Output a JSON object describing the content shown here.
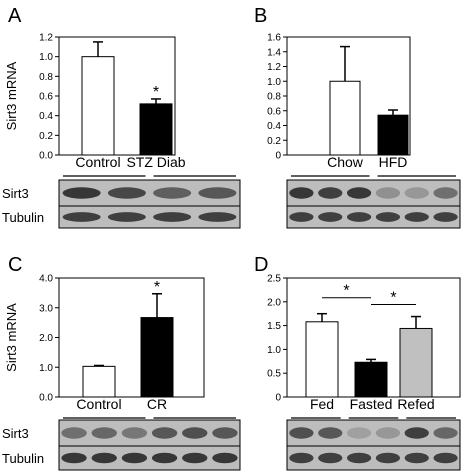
{
  "chart_data": [
    {
      "panel": "A",
      "type": "bar",
      "ylabel": "Sirt3 mRNA",
      "ylim": [
        0,
        1.2
      ],
      "yticks": [
        "0.0",
        "0.2",
        "0.4",
        "0.6",
        "0.8",
        "1.0",
        "1.2"
      ],
      "categories": [
        "Control",
        "STZ Diab"
      ],
      "values": [
        1.0,
        0.52
      ],
      "errors": [
        0.15,
        0.05
      ],
      "fills": [
        "#ffffff",
        "#000000"
      ],
      "significance": [
        "",
        "*"
      ],
      "blot_labels": [
        "Sirt3",
        "Tubulin"
      ],
      "group_sizes": [
        2,
        2
      ]
    },
    {
      "panel": "B",
      "type": "bar",
      "ylabel": "",
      "ylim": [
        0,
        1.6
      ],
      "yticks": [
        "0",
        "0.2",
        "0.4",
        "0.6",
        "0.8",
        "1.0",
        "1.2",
        "1.4",
        "1.6"
      ],
      "categories": [
        "Chow",
        "HFD"
      ],
      "values": [
        1.0,
        0.54
      ],
      "errors": [
        0.47,
        0.07
      ],
      "fills": [
        "#ffffff",
        "#000000"
      ],
      "significance": [
        "",
        ""
      ],
      "blot_labels": [],
      "group_sizes": [
        3,
        3
      ]
    },
    {
      "panel": "C",
      "type": "bar",
      "ylabel": "Sirt3 mRNA",
      "ylim": [
        0,
        4.0
      ],
      "yticks": [
        "0.0",
        "1.0",
        "2.0",
        "3.0",
        "4.0"
      ],
      "categories": [
        "Control",
        "CR"
      ],
      "values": [
        1.03,
        2.67
      ],
      "errors": [
        0.03,
        0.8
      ],
      "fills": [
        "#ffffff",
        "#000000"
      ],
      "significance": [
        "",
        "*"
      ],
      "blot_labels": [
        "Sirt3",
        "Tubulin"
      ],
      "group_sizes": [
        3,
        3
      ]
    },
    {
      "panel": "D",
      "type": "bar",
      "ylabel": "",
      "ylim": [
        0,
        2.5
      ],
      "yticks": [
        "0",
        "0.5",
        "1.0",
        "1.5",
        "2.0",
        "2.5"
      ],
      "categories": [
        "Fed",
        "Fasted",
        "Refed"
      ],
      "values": [
        1.58,
        0.73,
        1.44
      ],
      "errors": [
        0.17,
        0.06,
        0.25
      ],
      "fills": [
        "#ffffff",
        "#000000",
        "#c0c0c0"
      ],
      "significance": [
        "",
        "",
        ""
      ],
      "brackets": [
        {
          "from": 0,
          "to": 1,
          "label": "*"
        },
        {
          "from": 1,
          "to": 2,
          "label": "*"
        }
      ],
      "blot_labels": [],
      "group_sizes": [
        2,
        2,
        2
      ]
    }
  ]
}
